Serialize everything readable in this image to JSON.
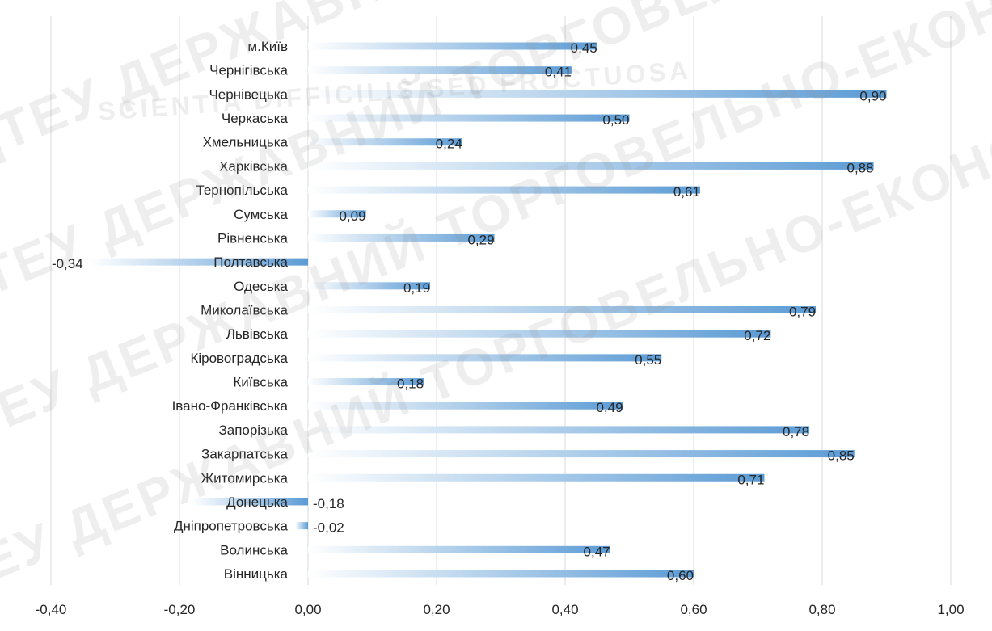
{
  "chart_data": {
    "type": "bar",
    "orientation": "horizontal",
    "categories": [
      "м.Київ",
      "Чернігівська",
      "Чернівецька",
      "Черкаська",
      "Хмельницька",
      "Харківська",
      "Тернопільська",
      "Сумська",
      "Рівненська",
      "Полтавська",
      "Одеська",
      "Миколаївська",
      "Львівська",
      "Кіровоградська",
      "Київська",
      "Івано-Франківська",
      "Запорізька",
      "Закарпатська",
      "Житомирська",
      "Донецька",
      "Дніпропетровська",
      "Волинська",
      "Вінницька"
    ],
    "values": [
      0.45,
      0.41,
      0.9,
      0.5,
      0.24,
      0.88,
      0.61,
      0.09,
      0.29,
      -0.34,
      0.19,
      0.79,
      0.72,
      0.55,
      0.18,
      0.49,
      0.78,
      0.85,
      0.71,
      -0.18,
      -0.02,
      0.47,
      0.6
    ],
    "value_labels": [
      "0,45",
      "0,41",
      "0,90",
      "0,50",
      "0,24",
      "0,88",
      "0,61",
      "0,09",
      "0,29",
      "-0,34",
      "0,19",
      "0,79",
      "0,72",
      "0,55",
      "0,18",
      "0,49",
      "0,78",
      "0,85",
      "0,71",
      "-0,18",
      "-0,02",
      "0,47",
      "0,60"
    ],
    "xlim": [
      -0.4,
      1.0
    ],
    "xticks": [
      -0.4,
      -0.2,
      0,
      0.2,
      0.4,
      0.6,
      0.8,
      1.0
    ],
    "xtick_labels": [
      "-0,40",
      "-0,20",
      "0,00",
      "0,20",
      "0,40",
      "0,60",
      "0,80",
      "1,00"
    ],
    "grid": "vertical",
    "title": "",
    "xlabel": "",
    "ylabel": "",
    "bar_color": "#5b9bd5"
  },
  "watermark": {
    "text": "ДТЕУ ДЕРЖАВНИЙ ТОРГОВЕЛЬНО-ЕКОНОМІЧНИЙ УНІВЕРСИТЕТ",
    "motto": "SCIENTIA DIFFICILIS SED FRUCTUOSA"
  }
}
